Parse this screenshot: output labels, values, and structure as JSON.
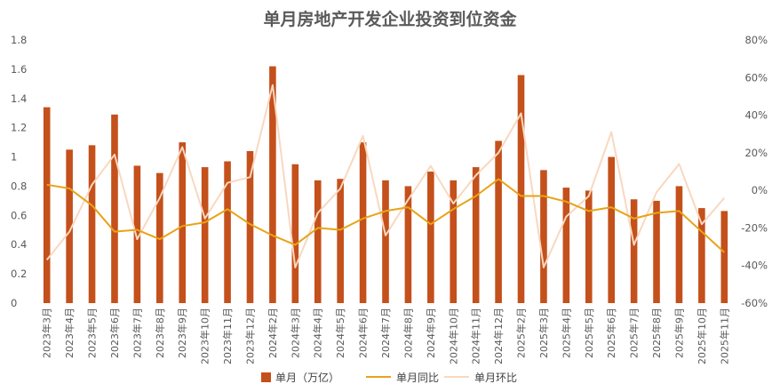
{
  "chart_data": {
    "type": "bar",
    "title": "单月房地产开发企业投资到位资金",
    "categories": [
      "2023年3月",
      "2023年4月",
      "2023年5月",
      "2023年6月",
      "2023年7月",
      "2023年8月",
      "2023年9月",
      "2023年10月",
      "2023年11月",
      "2023年12月",
      "2024年2月",
      "2024年3月",
      "2024年4月",
      "2024年5月",
      "2024年6月",
      "2024年7月",
      "2024年8月",
      "2024年9月",
      "2024年10月",
      "2024年11月",
      "2024年12月",
      "2025年2月",
      "2025年3月",
      "2025年4月",
      "2025年5月",
      "2025年6月",
      "2025年7月",
      "2025年8月",
      "2025年9月",
      "2025年10月",
      "2025年11月"
    ],
    "series": [
      {
        "name": "单月（万亿）",
        "type": "bar",
        "axis": "left",
        "color": "#c4501b",
        "values": [
          1.34,
          1.05,
          1.08,
          1.29,
          0.94,
          0.89,
          1.1,
          0.93,
          0.97,
          1.04,
          1.62,
          0.95,
          0.84,
          0.85,
          1.1,
          0.84,
          0.8,
          0.9,
          0.84,
          0.93,
          1.11,
          1.56,
          0.91,
          0.79,
          0.77,
          1.0,
          0.71,
          0.7,
          0.8,
          0.65,
          0.63
        ]
      },
      {
        "name": "单月同比",
        "type": "line",
        "axis": "right",
        "color": "#e8a317",
        "values": [
          3,
          1,
          -8,
          -22,
          -21,
          -26,
          -19,
          -17,
          -10,
          -18,
          -24,
          -29,
          -20,
          -21,
          -15,
          -11,
          -9,
          -18,
          -10,
          -3,
          6,
          -3,
          -3,
          -6,
          -11,
          -9,
          -15,
          -12,
          -11,
          -22,
          -33
        ]
      },
      {
        "name": "单月环比",
        "type": "line",
        "axis": "right",
        "color": "#f9d8bf",
        "values": [
          -37,
          -22,
          3,
          19,
          -26,
          -4,
          23,
          -15,
          4,
          7,
          56,
          -41,
          -12,
          1,
          29,
          -24,
          -5,
          13,
          -7,
          8,
          20,
          41,
          -41,
          -14,
          -3,
          31,
          -29,
          -1,
          14,
          -18,
          -4
        ]
      }
    ],
    "ylim": [
      0,
      1.8
    ],
    "yticks": [
      "0",
      "0.2",
      "0.4",
      "0.6",
      "0.8",
      "1",
      "1.2",
      "1.4",
      "1.6",
      "1.8"
    ],
    "y2lim": [
      -60,
      80
    ],
    "y2ticks": [
      "-60%",
      "-40%",
      "-20%",
      "0%",
      "20%",
      "40%",
      "60%",
      "80%"
    ],
    "legend_position": "bottom",
    "grid": false
  }
}
